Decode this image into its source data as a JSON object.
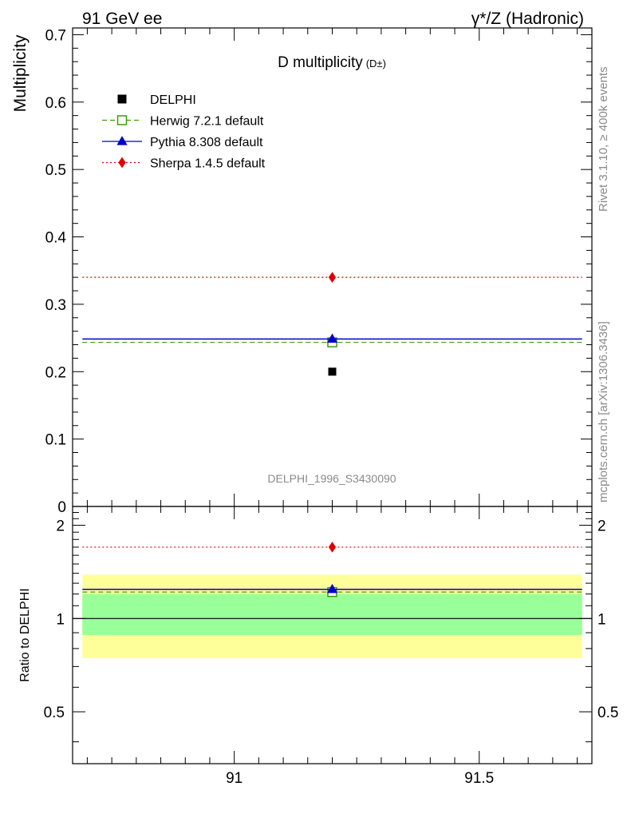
{
  "header": {
    "left": "91 GeV ee",
    "right": "γ*/Z (Hadronic)"
  },
  "side": {
    "rivet": "Rivet 3.1.10, ≥ 400k events",
    "mcplots": "mcplots.cern.ch [arXiv:1306.3436]"
  },
  "watermark": "DELPHI_1996_S3430090",
  "chart_data": [
    {
      "type": "scatter",
      "panel": "main",
      "title": "D multiplicity",
      "title_sub": "(D±)",
      "ylabel": "Multiplicity",
      "xlim": [
        90.67,
        91.73
      ],
      "ylim": [
        0,
        0.71
      ],
      "x_ticks": [
        91,
        91.5
      ],
      "x_tick_labels": [
        "91",
        "91.5"
      ],
      "y_ticks": [
        0,
        0.1,
        0.2,
        0.3,
        0.4,
        0.5,
        0.6,
        0.7
      ],
      "y_tick_labels": [
        "0",
        "0.1",
        "0.2",
        "0.3",
        "0.4",
        "0.5",
        "0.6",
        "0.7"
      ],
      "x_bin": [
        90.69,
        91.71
      ],
      "x_center": 91.2,
      "legend_position": "top-left",
      "series": [
        {
          "name": "DELPHI",
          "value": 0.2,
          "color": "#000000",
          "marker": "square",
          "line": "none"
        },
        {
          "name": "Herwig 7.2.1 default",
          "value": 0.2435,
          "color": "#3a9c0e",
          "marker": "open-square",
          "line": "dashed"
        },
        {
          "name": "Pythia 8.308 default",
          "value": 0.2485,
          "color": "#0000cc",
          "marker": "triangle",
          "line": "solid"
        },
        {
          "name": "Sherpa 1.4.5 default",
          "value": 0.34,
          "color": "#dd0000",
          "marker": "diamond",
          "line": "dotted"
        }
      ]
    },
    {
      "type": "scatter",
      "panel": "ratio",
      "ylabel": "Ratio to DELPHI",
      "ylim": [
        0.34,
        2.3
      ],
      "y_ticks": [
        0.5,
        1,
        2
      ],
      "y_tick_labels": [
        "0.5",
        "1",
        "2"
      ],
      "reference_line": 1,
      "bands": [
        {
          "name": "outer",
          "range": [
            0.745,
            1.385
          ],
          "color": "#ffff99"
        },
        {
          "name": "inner",
          "range": [
            0.885,
            1.2
          ],
          "color": "#99ff99"
        }
      ],
      "series": [
        {
          "name": "Herwig 7.2.1 default",
          "value": 1.2175,
          "color": "#3a9c0e"
        },
        {
          "name": "Pythia 8.308 default",
          "value": 1.2425,
          "color": "#0000cc"
        },
        {
          "name": "Sherpa 1.4.5 default",
          "value": 1.7,
          "color": "#dd0000"
        }
      ]
    }
  ]
}
